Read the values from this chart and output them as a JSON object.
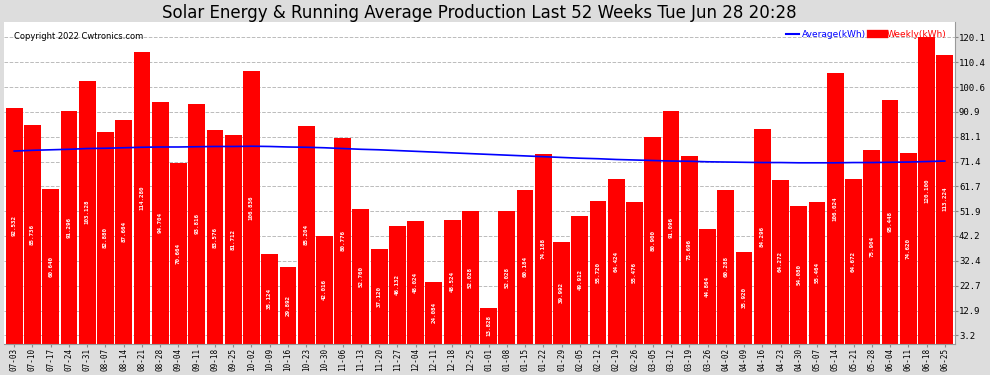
{
  "title": "Solar Energy & Running Average Production Last 52 Weeks Tue Jun 28 20:28",
  "copyright": "Copyright 2022 Cwtronics.com",
  "legend_avg": "Average(kWh)",
  "legend_weekly": "Weekly(kWh)",
  "bar_color": "#ff0000",
  "avg_line_color": "#0000ff",
  "background_color": "#dddddd",
  "plot_bg_color": "#ffffff",
  "title_fontsize": 12,
  "yticks": [
    3.2,
    12.9,
    22.7,
    32.4,
    42.2,
    51.9,
    61.7,
    71.4,
    81.1,
    90.9,
    100.6,
    110.4,
    120.1
  ],
  "ylim": [
    0,
    126
  ],
  "dates": [
    "07-03",
    "07-10",
    "07-17",
    "07-24",
    "07-31",
    "08-07",
    "08-14",
    "08-21",
    "08-28",
    "09-04",
    "09-11",
    "09-18",
    "09-25",
    "10-02",
    "10-09",
    "10-16",
    "10-23",
    "10-30",
    "11-06",
    "11-13",
    "11-20",
    "11-27",
    "12-04",
    "12-11",
    "12-18",
    "12-25",
    "01-01",
    "01-08",
    "01-15",
    "01-22",
    "01-29",
    "02-05",
    "02-12",
    "02-19",
    "02-26",
    "03-05",
    "03-12",
    "03-19",
    "03-26",
    "04-02",
    "04-09",
    "04-16",
    "04-23",
    "04-30",
    "05-07",
    "05-14",
    "05-21",
    "05-28",
    "06-04",
    "06-11",
    "06-18",
    "06-25"
  ],
  "weekly_values": [
    92.532,
    85.736,
    60.64,
    91.296,
    103.128,
    82.88,
    87.664,
    114.28,
    94.704,
    70.664,
    93.816,
    83.576,
    81.712,
    106.836,
    35.124,
    29.892,
    85.204,
    42.016,
    80.776,
    52.76,
    37.12,
    46.132,
    48.024,
    24.084,
    48.524,
    52.028,
    13.828,
    52.028,
    60.184,
    74.188,
    39.992,
    49.912,
    55.72,
    64.424,
    55.476,
    80.9,
    91.096,
    73.696,
    44.864,
    60.288,
    35.92,
    84.296,
    64.272,
    54.08,
    55.464,
    106.024,
    64.672,
    75.904,
    95.448,
    74.62,
    120.1,
    113.224
  ],
  "bar_labels": [
    "92.532",
    "85.736",
    "60.640",
    "91.296",
    "103.128",
    "82.880",
    "87.664",
    "114.280",
    "94.704",
    "70.664",
    "93.816",
    "83.576",
    "81.712",
    "106.836",
    "35.124",
    "29.892",
    "85.204",
    "42.016",
    "80.776",
    "52.760",
    "37.120",
    "46.132",
    "48.024",
    "24.084",
    "48.524",
    "52.028",
    "13.828",
    "52.028",
    "60.184",
    "74.188",
    "39.992",
    "49.912",
    "55.720",
    "64.424",
    "55.476",
    "80.900",
    "91.096",
    "73.696",
    "44.864",
    "60.288",
    "35.920",
    "84.296",
    "64.272",
    "54.080",
    "55.464",
    "106.024",
    "64.672",
    "75.904",
    "95.448",
    "74.620",
    "120.100",
    "113.224"
  ],
  "avg_values": [
    75.5,
    75.8,
    76.0,
    76.2,
    76.5,
    76.6,
    76.8,
    77.0,
    77.1,
    77.1,
    77.2,
    77.3,
    77.3,
    77.4,
    77.3,
    77.1,
    77.0,
    76.8,
    76.5,
    76.2,
    76.0,
    75.7,
    75.4,
    75.1,
    74.8,
    74.5,
    74.2,
    73.9,
    73.6,
    73.3,
    73.0,
    72.7,
    72.5,
    72.2,
    72.0,
    71.8,
    71.6,
    71.5,
    71.3,
    71.2,
    71.1,
    71.0,
    71.0,
    70.9,
    70.9,
    70.9,
    71.0,
    71.0,
    71.1,
    71.2,
    71.4,
    71.6
  ]
}
